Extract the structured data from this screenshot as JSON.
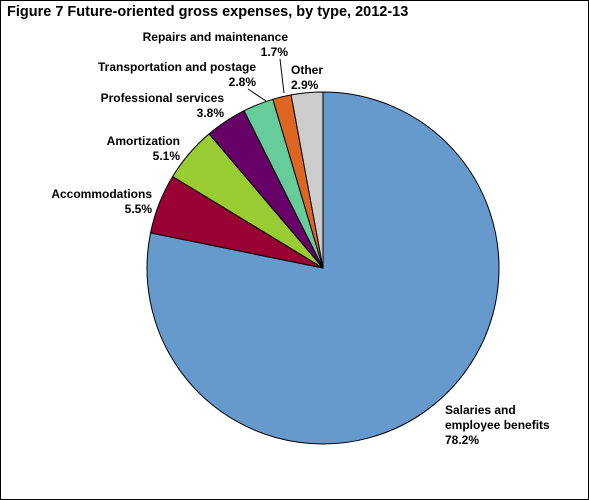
{
  "chart_data": {
    "type": "pie",
    "title": "Figure 7  Future-oriented gross expenses, by type, 2012-13",
    "legend": "none",
    "slices": [
      {
        "label": "Salaries and employee benefits",
        "label_lines": [
          "Salaries and",
          "employee benefits"
        ],
        "value": 78.2,
        "value_label": "78.2%",
        "color": "#6699CC"
      },
      {
        "label": "Accommodations",
        "label_lines": [
          "Accommodations"
        ],
        "value": 5.5,
        "value_label": "5.5%",
        "color": "#990033"
      },
      {
        "label": "Amortization",
        "label_lines": [
          "Amortization"
        ],
        "value": 5.1,
        "value_label": "5.1%",
        "color": "#99CC33"
      },
      {
        "label": "Professional services",
        "label_lines": [
          "Professional services"
        ],
        "value": 3.8,
        "value_label": "3.8%",
        "color": "#660066"
      },
      {
        "label": "Transportation and postage",
        "label_lines": [
          "Transportation and postage"
        ],
        "value": 2.8,
        "value_label": "2.8%",
        "color": "#66CC99"
      },
      {
        "label": "Repairs and maintenance",
        "label_lines": [
          "Repairs and maintenance"
        ],
        "value": 1.7,
        "value_label": "1.7%",
        "color": "#DD6622"
      },
      {
        "label": "Other",
        "label_lines": [
          "Other"
        ],
        "value": 2.9,
        "value_label": "2.9%",
        "color": "#CCCCCC"
      }
    ]
  }
}
